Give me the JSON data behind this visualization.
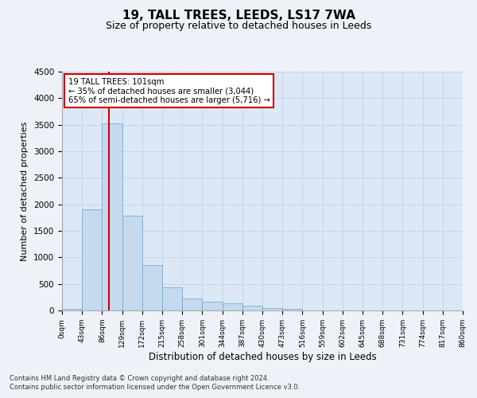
{
  "title1": "19, TALL TREES, LEEDS, LS17 7WA",
  "title2": "Size of property relative to detached houses in Leeds",
  "xlabel": "Distribution of detached houses by size in Leeds",
  "ylabel": "Number of detached properties",
  "footnote1": "Contains HM Land Registry data © Crown copyright and database right 2024.",
  "footnote2": "Contains public sector information licensed under the Open Government Licence v3.0.",
  "annotation_line1": "19 TALL TREES: 101sqm",
  "annotation_line2": "← 35% of detached houses are smaller (3,044)",
  "annotation_line3": "65% of semi-detached houses are larger (5,716) →",
  "bar_color": "#c5d9ef",
  "bar_edge_color": "#7aadd4",
  "property_line_x": 101,
  "bin_edges": [
    0,
    43,
    86,
    129,
    172,
    215,
    258,
    301,
    344,
    387,
    430,
    473,
    516,
    559,
    602,
    645,
    688,
    731,
    774,
    817,
    860
  ],
  "bin_labels": [
    "0sqm",
    "43sqm",
    "86sqm",
    "129sqm",
    "172sqm",
    "215sqm",
    "258sqm",
    "301sqm",
    "344sqm",
    "387sqm",
    "430sqm",
    "473sqm",
    "516sqm",
    "559sqm",
    "602sqm",
    "645sqm",
    "688sqm",
    "731sqm",
    "774sqm",
    "817sqm",
    "860sqm"
  ],
  "bar_heights": [
    30,
    1900,
    3530,
    1780,
    860,
    430,
    220,
    160,
    130,
    90,
    50,
    30,
    0,
    0,
    0,
    0,
    0,
    0,
    0,
    0
  ],
  "ylim": [
    0,
    4500
  ],
  "yticks": [
    0,
    500,
    1000,
    1500,
    2000,
    2500,
    3000,
    3500,
    4000,
    4500
  ],
  "background_color": "#eef2f8",
  "plot_bg_color": "#dce8f5",
  "grid_color": "#c8d8e8",
  "annotation_box_color": "#ffffff",
  "annotation_box_edge": "#cc0000",
  "red_line_color": "#cc0000"
}
